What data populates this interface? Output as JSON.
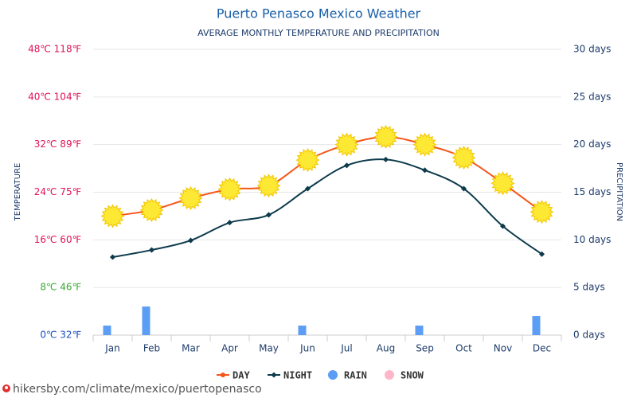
{
  "chart_data": {
    "type": "line-bar",
    "title": "Puerto Penasco Mexico Weather",
    "subtitle": "AVERAGE MONTHLY TEMPERATURE AND PRECIPITATION",
    "y_label": "TEMPERATURE",
    "y2_label": "PRECIPITATION",
    "categories": [
      "Jan",
      "Feb",
      "Mar",
      "Apr",
      "May",
      "Jun",
      "Jul",
      "Aug",
      "Sep",
      "Oct",
      "Nov",
      "Dec"
    ],
    "ylim": [
      0,
      48
    ],
    "yticks": [
      {
        "value": 0,
        "label": "0℃ 32℉"
      },
      {
        "value": 8,
        "label": "8℃ 46℉"
      },
      {
        "value": 16,
        "label": "16℃ 60℉"
      },
      {
        "value": 24,
        "label": "24℃ 75℉"
      },
      {
        "value": 32,
        "label": "32℃ 89℉"
      },
      {
        "value": 40,
        "label": "40℃ 104℉"
      },
      {
        "value": 48,
        "label": "48℃ 118℉"
      }
    ],
    "ytick_colors": [
      "#1a4fc0",
      "#3aaa35",
      "#e0105a",
      "#e0105a",
      "#e0105a",
      "#e0105a",
      "#e0105a"
    ],
    "y2lim": [
      0,
      30
    ],
    "y2ticks": [
      {
        "value": 0,
        "label": "0 days"
      },
      {
        "value": 5,
        "label": "5 days"
      },
      {
        "value": 10,
        "label": "10 days"
      },
      {
        "value": 15,
        "label": "15 days"
      },
      {
        "value": 20,
        "label": "20 days"
      },
      {
        "value": 25,
        "label": "25 days"
      },
      {
        "value": 30,
        "label": "30 days"
      }
    ],
    "grid": true,
    "series": [
      {
        "name": "DAY",
        "color": "#f5561a",
        "values": [
          20,
          21,
          23,
          24.5,
          25.1,
          29.4,
          32,
          33.3,
          32,
          29.8,
          25.5,
          20.7
        ]
      },
      {
        "name": "NIGHT",
        "color": "#0d3b4c",
        "values": [
          13.1,
          14.3,
          15.9,
          18.9,
          20.2,
          24.6,
          28.5,
          29.5,
          27.7,
          24.6,
          18.3,
          13.6
        ]
      },
      {
        "name": "RAIN",
        "color": "#5c9df5",
        "axis": "y2",
        "values": [
          1,
          3,
          0,
          0,
          0,
          1,
          0,
          0,
          1,
          0,
          0,
          2
        ]
      },
      {
        "name": "SNOW",
        "color": "#ffb6c8",
        "axis": "y2",
        "values": [
          0,
          0,
          0,
          0,
          0,
          0,
          0,
          0,
          0,
          0,
          0,
          0
        ]
      }
    ]
  },
  "footer": "hikersby.com/climate/mexico/puertopenasco"
}
